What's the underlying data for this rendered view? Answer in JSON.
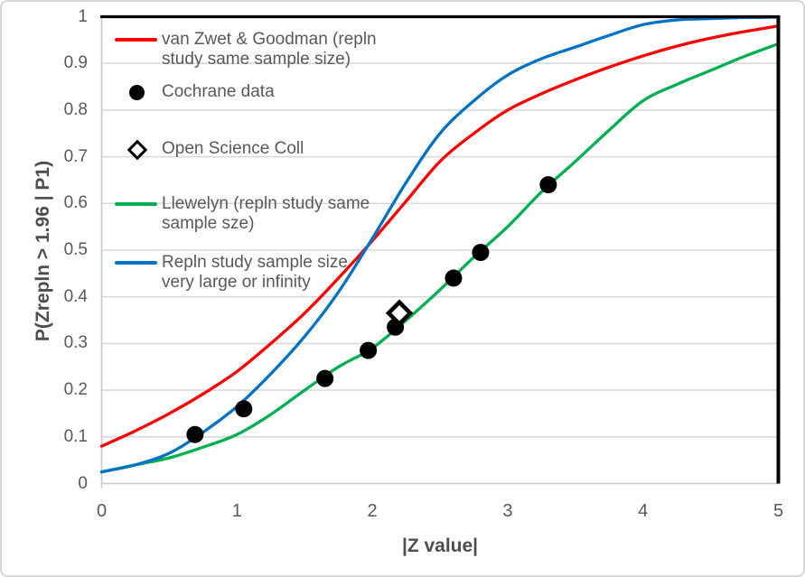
{
  "axes": {
    "x_title": "|Z value|",
    "y_title": "P(Zrepln > 1.96 | P1)"
  },
  "legend": {
    "items": [
      {
        "marker": "line",
        "color": "#fe0000",
        "lines": [
          "van Zwet & Goodman (repln",
          "study same sample size)"
        ]
      },
      {
        "marker": "filled-circle",
        "color": "#000000",
        "lines": [
          "Cochrane data"
        ]
      },
      {
        "marker": "open-diamond",
        "color": "#000000",
        "lines": [
          "Open Science Coll"
        ]
      },
      {
        "marker": "line",
        "color": "#00b050",
        "lines": [
          "Llewelyn (repln study same",
          "sample sze)"
        ]
      },
      {
        "marker": "line",
        "color": "#0072c6",
        "lines": [
          "Repln study sample size",
          "very large or infinity"
        ]
      }
    ]
  },
  "colors": {
    "grid": "#d9d9d9",
    "axis_line": "#c9c9c9",
    "tick_label": "#595959",
    "legend_text": "#595959",
    "axis_title": "#4e4e4e",
    "plot_border": "#000000",
    "red_series": "#fe0000",
    "green_series": "#00b050",
    "blue_series": "#0072c6",
    "point_color": "#000000"
  },
  "chart_data": {
    "type": "line",
    "title": "",
    "xlabel": "|Z value|",
    "ylabel": "P(Zrepln > 1.96 | P1)",
    "xlim": [
      0,
      5
    ],
    "ylim": [
      0,
      1
    ],
    "x_tick_labels": [
      "0",
      "1",
      "2",
      "3",
      "4",
      "5"
    ],
    "y_tick_labels": [
      "0",
      "0.1",
      "0.2",
      "0.3",
      "0.4",
      "0.5",
      "0.6",
      "0.7",
      "0.8",
      "0.9",
      "1"
    ],
    "grid": "horizontal",
    "legend_position": "inside-top-left",
    "series": [
      {
        "name": "van Zwet & Goodman (repln study same sample size)",
        "type": "line",
        "color": "#fe0000",
        "x": [
          0,
          0.25,
          0.5,
          0.75,
          1,
          1.25,
          1.5,
          1.75,
          2,
          2.25,
          2.5,
          2.75,
          3,
          3.25,
          3.5,
          3.75,
          4,
          4.25,
          4.5,
          4.75,
          5
        ],
        "y": [
          0.08,
          0.113,
          0.15,
          0.192,
          0.24,
          0.3,
          0.365,
          0.44,
          0.52,
          0.605,
          0.69,
          0.75,
          0.8,
          0.835,
          0.865,
          0.892,
          0.916,
          0.937,
          0.954,
          0.968,
          0.98
        ]
      },
      {
        "name": "Llewelyn (repln study same sample sze)",
        "type": "line",
        "color": "#00b050",
        "x": [
          0,
          0.25,
          0.5,
          0.75,
          1,
          1.25,
          1.5,
          1.75,
          2,
          2.25,
          2.5,
          2.75,
          3,
          3.25,
          3.5,
          3.75,
          4,
          4.25,
          4.5,
          4.75,
          5
        ],
        "y": [
          0.025,
          0.04,
          0.055,
          0.078,
          0.105,
          0.148,
          0.2,
          0.25,
          0.29,
          0.35,
          0.415,
          0.485,
          0.55,
          0.625,
          0.69,
          0.757,
          0.82,
          0.855,
          0.885,
          0.915,
          0.942
        ]
      },
      {
        "name": "Repln study sample size very large or infinity",
        "type": "line",
        "color": "#0072c6",
        "x": [
          0,
          0.25,
          0.5,
          0.75,
          1,
          1.25,
          1.5,
          1.75,
          2,
          2.25,
          2.5,
          2.75,
          3,
          3.25,
          3.5,
          3.75,
          4,
          4.25,
          4.5,
          4.75,
          5
        ],
        "y": [
          0.025,
          0.04,
          0.065,
          0.11,
          0.165,
          0.235,
          0.315,
          0.41,
          0.525,
          0.645,
          0.75,
          0.82,
          0.875,
          0.91,
          0.935,
          0.96,
          0.983,
          0.993,
          0.996,
          0.998,
          0.999
        ]
      },
      {
        "name": "Cochrane data",
        "type": "scatter",
        "marker": "filled-circle",
        "color": "#000000",
        "points": [
          [
            0.69,
            0.105
          ],
          [
            1.05,
            0.16
          ],
          [
            1.65,
            0.225
          ],
          [
            1.97,
            0.285
          ],
          [
            2.17,
            0.335
          ],
          [
            2.6,
            0.44
          ],
          [
            2.8,
            0.495
          ],
          [
            3.3,
            0.64
          ]
        ]
      },
      {
        "name": "Open Science Coll",
        "type": "scatter",
        "marker": "open-diamond",
        "color": "#000000",
        "points": [
          [
            2.2,
            0.365
          ]
        ]
      }
    ]
  }
}
